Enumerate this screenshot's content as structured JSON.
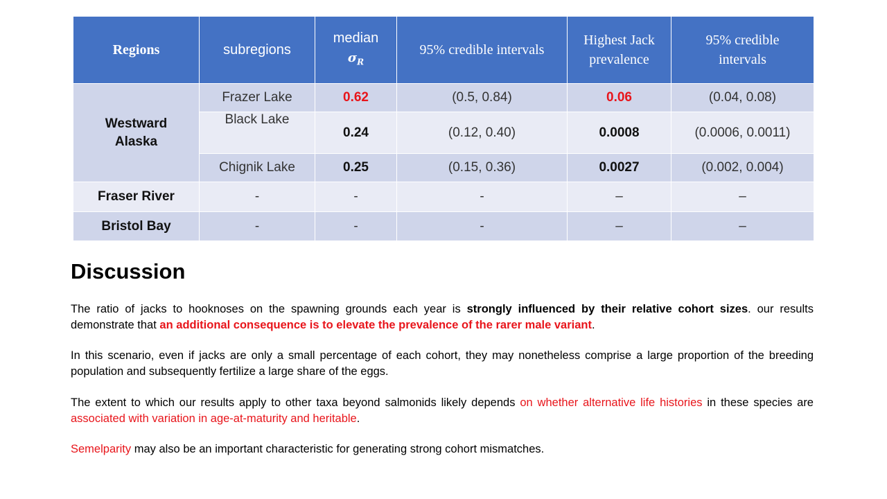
{
  "table": {
    "headers": {
      "regions": "Regions",
      "subregions": "subregions",
      "median": "median",
      "sigma": "σ",
      "sigma_sub": "R",
      "ci1": "95% credible intervals",
      "jack_line1": "Highest Jack",
      "jack_line2": "prevalence",
      "ci2_line1": "95% credible",
      "ci2_line2": "intervals"
    },
    "westward": {
      "line1": "Westward",
      "line2": "Alaska"
    },
    "rows": [
      {
        "subregion": "Frazer Lake",
        "median": "0.62",
        "ci": "(0.5, 0.84)",
        "jack": "0.06",
        "jack_ci": "(0.04, 0.08)"
      },
      {
        "subregion": "Black Lake",
        "median": "0.24",
        "ci": "(0.12, 0.40)",
        "jack": "0.0008",
        "jack_ci": "(0.0006, 0.0011)"
      },
      {
        "subregion": "Chignik Lake",
        "median": "0.25",
        "ci": "(0.15, 0.36)",
        "jack": "0.0027",
        "jack_ci": "(0.002, 0.004)"
      },
      {
        "region": "Fraser River",
        "subregion": "-",
        "median": "-",
        "ci": "-",
        "jack": "–",
        "jack_ci": "–"
      },
      {
        "region": "Bristol Bay",
        "subregion": "-",
        "median": "-",
        "ci": "-",
        "jack": "–",
        "jack_ci": "–"
      }
    ],
    "highlight_color": "#e8151b",
    "header_color": "#4472c4"
  },
  "discussion": {
    "heading": "Discussion",
    "p1": {
      "a": "The ratio of jacks to hooknoses on the spawning grounds each year is ",
      "b": "strongly influenced by their relative cohort sizes",
      "c": ". our results demonstrate that ",
      "d": "an additional consequence is to elevate the prevalence of the rarer male variant",
      "e": "."
    },
    "p2": "In this scenario, even if jacks are only a small percentage of each cohort, they may nonetheless comprise a large proportion of the breeding population and subsequently fertilize a large share of the eggs.",
    "p3": {
      "a": "The extent to which our results apply to other taxa beyond salmonids likely depends ",
      "b": "on whether alternative life histories",
      "c": " in these species are ",
      "d": "associated with variation in age-at-maturity and heritable",
      "e": "."
    },
    "p4": {
      "a": "Semelparity",
      "b": " may also be an important characteristic for generating strong cohort mismatches."
    }
  }
}
